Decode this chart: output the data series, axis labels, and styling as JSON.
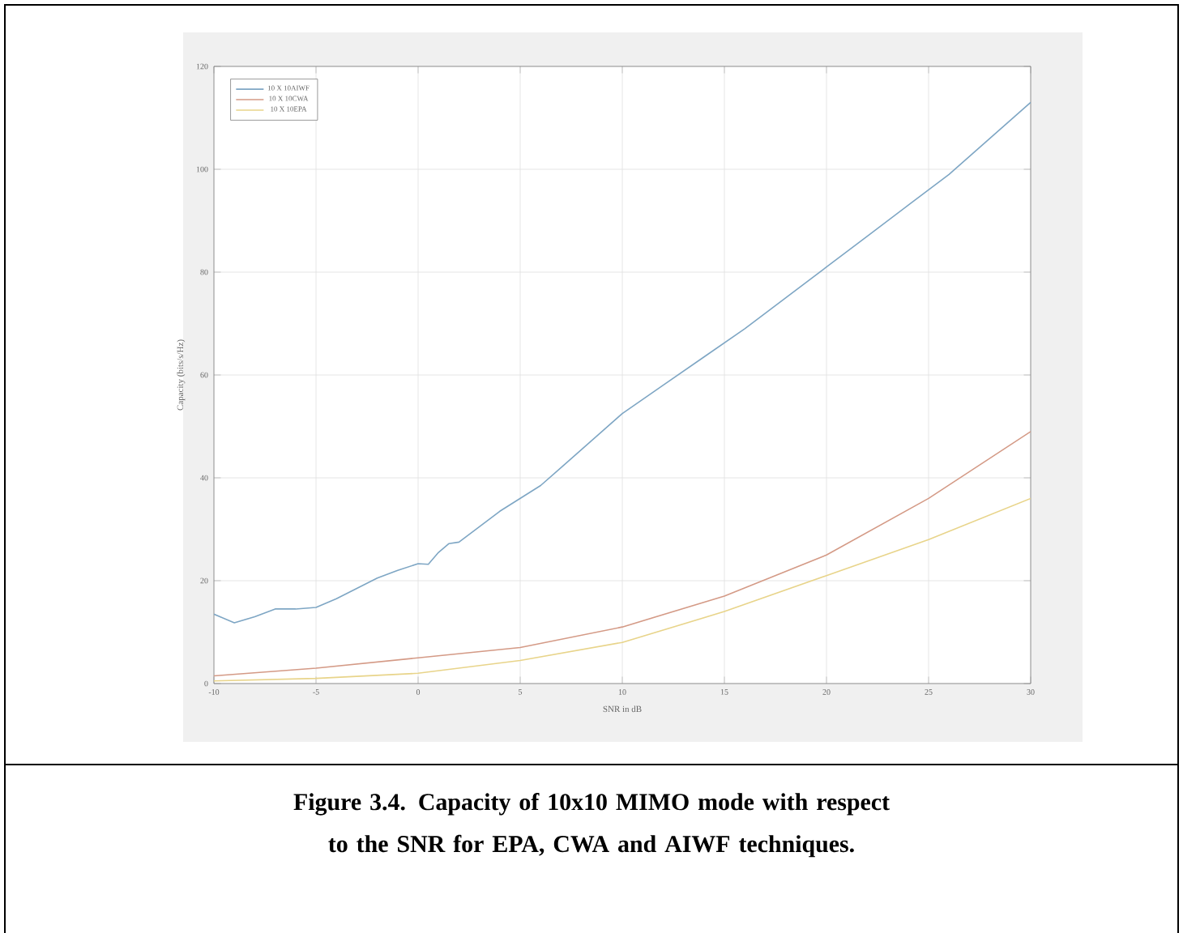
{
  "chart_data": {
    "type": "line",
    "xlabel": "SNR in dB",
    "ylabel": "Capacity (bits/s/Hz)",
    "xlim": [
      -10,
      30
    ],
    "xticks": [
      -10,
      -5,
      0,
      5,
      10,
      15,
      20,
      25,
      30
    ],
    "ylim": [
      0,
      120
    ],
    "yticks": [
      0,
      20,
      40,
      60,
      80,
      100,
      120
    ],
    "grid": true,
    "legend": "top left",
    "marker": "none",
    "line_style": "solid",
    "series": [
      {
        "name": "10 X 10AIWF",
        "color": "#7ea6c4",
        "x": [
          -10,
          -9,
          -8,
          -7,
          -6,
          -5,
          -4,
          -3,
          -2,
          -1,
          0,
          0.5,
          1,
          1.5,
          2,
          3,
          4,
          5,
          6,
          7,
          8,
          9,
          10,
          12,
          14,
          16,
          18,
          20,
          22,
          24,
          26,
          28,
          30
        ],
        "values": [
          13.5,
          11.8,
          13,
          14.5,
          14.5,
          14.8,
          16.5,
          18.5,
          20.5,
          22,
          23.3,
          23.2,
          25.5,
          27.2,
          27.5,
          30.5,
          33.5,
          36,
          38.5,
          42,
          45.5,
          49,
          52.5,
          58,
          63.5,
          69,
          75,
          81,
          87,
          93,
          99,
          106,
          113
        ]
      },
      {
        "name": "10 X 10CWA",
        "color": "#d49a86",
        "x": [
          -10,
          -5,
          0,
          5,
          10,
          15,
          20,
          25,
          30
        ],
        "values": [
          1.5,
          3,
          5,
          7,
          11,
          17,
          25,
          36,
          49
        ]
      },
      {
        "name": "10 X 10EPA",
        "color": "#e8d48a",
        "x": [
          -10,
          -5,
          0,
          5,
          10,
          15,
          20,
          25,
          30
        ],
        "values": [
          0.5,
          1,
          2,
          4.5,
          8,
          14,
          21,
          28,
          36
        ]
      }
    ],
    "annotations": [
      "Figure 3.4.  Capacity of 10x10 MIMO mode with respect to the SNR for EPA, CWA and AIWF techniques."
    ]
  }
}
